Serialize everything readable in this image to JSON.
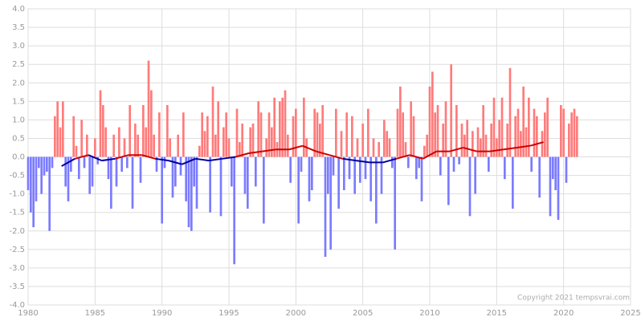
{
  "chart_data": {
    "type": "bar",
    "annotation": "Copyright 2021 tempsvrai.com",
    "xlim": [
      1980,
      2025
    ],
    "xticks": [
      1980,
      1985,
      1990,
      1995,
      2000,
      2005,
      2010,
      2015,
      2020,
      2025
    ],
    "ylim": [
      -4,
      4
    ],
    "yticks": [
      {
        "value": 4,
        "label": "4.0"
      },
      3.5,
      {
        "value": 3,
        "label": "3.0"
      },
      2.5,
      {
        "value": 2,
        "label": "2.0"
      },
      1.5,
      {
        "value": 1,
        "label": "1.0"
      },
      0.5,
      {
        "value": 0,
        "label": "0.0"
      },
      -0.5,
      {
        "value": -1,
        "label": "-1.0"
      },
      -1.5,
      {
        "value": -2,
        "label": "-2.0"
      },
      -2.5,
      {
        "value": -3,
        "label": "-3.0"
      },
      -3.5,
      {
        "value": -4,
        "label": "-4.0"
      }
    ],
    "grid": true,
    "positive_color": "#ff7b7b",
    "negative_color": "#7b7bff",
    "x": [
      1980,
      1980.2,
      1980.4,
      1980.6,
      1980.8,
      1981,
      1981.2,
      1981.4,
      1981.6,
      1981.8,
      1982,
      1982.2,
      1982.4,
      1982.6,
      1982.8,
      1983,
      1983.2,
      1983.4,
      1983.6,
      1983.8,
      1984,
      1984.2,
      1984.4,
      1984.6,
      1984.8,
      1985,
      1985.2,
      1985.4,
      1985.6,
      1985.8,
      1986,
      1986.2,
      1986.4,
      1986.6,
      1986.8,
      1987,
      1987.2,
      1987.4,
      1987.6,
      1987.8,
      1988,
      1988.2,
      1988.4,
      1988.6,
      1988.8,
      1989,
      1989.2,
      1989.4,
      1989.6,
      1989.8,
      1990,
      1990.2,
      1990.4,
      1990.6,
      1990.8,
      1991,
      1991.2,
      1991.4,
      1991.6,
      1991.8,
      1992,
      1992.2,
      1992.4,
      1992.6,
      1992.8,
      1993,
      1993.2,
      1993.4,
      1993.6,
      1993.8,
      1994,
      1994.2,
      1994.4,
      1994.6,
      1994.8,
      1995,
      1995.2,
      1995.4,
      1995.6,
      1995.8,
      1996,
      1996.2,
      1996.4,
      1996.6,
      1996.8,
      1997,
      1997.2,
      1997.4,
      1997.6,
      1997.8,
      1998,
      1998.2,
      1998.4,
      1998.6,
      1998.8,
      1999,
      1999.2,
      1999.4,
      1999.6,
      1999.8,
      2000,
      2000.2,
      2000.4,
      2000.6,
      2000.8,
      2001,
      2001.2,
      2001.4,
      2001.6,
      2001.8,
      2002,
      2002.2,
      2002.4,
      2002.6,
      2002.8,
      2003,
      2003.2,
      2003.4,
      2003.6,
      2003.8,
      2004,
      2004.2,
      2004.4,
      2004.6,
      2004.8,
      2005,
      2005.2,
      2005.4,
      2005.6,
      2005.8,
      2006,
      2006.2,
      2006.4,
      2006.6,
      2006.8,
      2007,
      2007.2,
      2007.4,
      2007.6,
      2007.8,
      2008,
      2008.2,
      2008.4,
      2008.6,
      2008.8,
      2009,
      2009.2,
      2009.4,
      2009.6,
      2009.8,
      2010,
      2010.2,
      2010.4,
      2010.6,
      2010.8,
      2011,
      2011.2,
      2011.4,
      2011.6,
      2011.8,
      2012,
      2012.2,
      2012.4,
      2012.6,
      2012.8,
      2013,
      2013.2,
      2013.4,
      2013.6,
      2013.8,
      2014,
      2014.2,
      2014.4,
      2014.6,
      2014.8,
      2015,
      2015.2,
      2015.4,
      2015.6,
      2015.8,
      2016,
      2016.2,
      2016.4,
      2016.6,
      2016.8,
      2017,
      2017.2,
      2017.4,
      2017.6,
      2017.8,
      2018,
      2018.2,
      2018.4,
      2018.6,
      2018.8,
      2019,
      2019.2,
      2019.4,
      2019.6,
      2019.8,
      2020,
      2020.2,
      2020.4,
      2020.6,
      2020.8,
      2021
    ],
    "values": [
      -0.9,
      -1.5,
      -1.9,
      -1.2,
      -0.3,
      -1.0,
      -0.5,
      -0.4,
      -2.0,
      -0.3,
      1.1,
      1.5,
      0.8,
      1.5,
      -0.8,
      -1.2,
      -0.4,
      1.1,
      0.3,
      -0.6,
      1.0,
      -0.3,
      0.6,
      -1.0,
      -0.8,
      0.5,
      -0.2,
      1.8,
      1.4,
      0.8,
      -0.6,
      -1.4,
      0.6,
      -0.8,
      0.8,
      -0.4,
      0.5,
      -0.3,
      1.4,
      -1.4,
      0.9,
      0.6,
      -0.7,
      1.4,
      0.8,
      2.6,
      1.8,
      0.6,
      -0.4,
      1.2,
      -1.8,
      -0.3,
      1.4,
      0.5,
      -1.1,
      -0.8,
      0.6,
      -0.5,
      1.2,
      -1.2,
      -1.9,
      -2.0,
      -0.8,
      -1.4,
      0.3,
      1.2,
      0.7,
      1.1,
      -1.5,
      1.9,
      0.6,
      1.5,
      -1.6,
      0.8,
      1.2,
      0.5,
      -0.8,
      -2.9,
      1.3,
      0.4,
      0.9,
      -1.0,
      -1.4,
      0.8,
      0.9,
      -0.8,
      1.5,
      1.2,
      -1.8,
      0.5,
      1.2,
      0.8,
      1.6,
      0.4,
      1.5,
      1.6,
      1.8,
      0.6,
      -0.7,
      1.1,
      1.3,
      -1.8,
      -0.4,
      1.6,
      0.5,
      -1.2,
      -0.9,
      1.3,
      1.2,
      0.9,
      1.4,
      -2.7,
      -1.0,
      -2.5,
      -0.5,
      1.3,
      -1.4,
      0.7,
      -0.9,
      1.2,
      -0.6,
      1.1,
      -1.0,
      0.5,
      -0.7,
      0.9,
      -0.6,
      1.3,
      -1.2,
      0.5,
      -1.8,
      0.4,
      -1.0,
      1.0,
      0.7,
      0.5,
      -0.3,
      -2.5,
      1.3,
      1.9,
      1.2,
      0.4,
      -0.3,
      1.5,
      1.1,
      -0.6,
      -0.3,
      -1.2,
      0.3,
      0.6,
      1.9,
      2.3,
      1.2,
      1.4,
      -0.5,
      0.9,
      1.5,
      -1.3,
      2.5,
      -0.4,
      1.4,
      -0.2,
      0.9,
      0.6,
      1.0,
      -1.6,
      0.7,
      -1.0,
      0.8,
      0.5,
      1.4,
      0.6,
      -0.4,
      0.9,
      1.6,
      0.5,
      1.0,
      1.6,
      -0.6,
      0.9,
      2.4,
      -1.4,
      1.1,
      1.3,
      0.7,
      1.9,
      0.8,
      1.6,
      -0.4,
      1.3,
      1.1,
      -1.1,
      0.7,
      1.2,
      1.6,
      -1.6,
      -0.6,
      -0.9,
      -1.7,
      1.4,
      1.3,
      -0.7,
      0.9,
      1.2,
      1.3,
      1.1
    ],
    "moving_average": {
      "positive_color": "#cc0000",
      "negative_color": "#000099",
      "x": [
        1982.5,
        1983.5,
        1984.5,
        1985.5,
        1986.5,
        1987.5,
        1988.5,
        1989.5,
        1990.5,
        1991.5,
        1992.5,
        1993.5,
        1994.5,
        1995.5,
        1996.5,
        1997.5,
        1998.5,
        1999.5,
        2000.5,
        2001.5,
        2002.5,
        2003.5,
        2004.5,
        2005.5,
        2006.5,
        2007.5,
        2008.5,
        2009.5,
        2010.5,
        2011.5,
        2012.5,
        2013.5,
        2014.5,
        2015.5,
        2016.5,
        2017.5,
        2018.5
      ],
      "values": [
        -0.25,
        -0.05,
        0.05,
        -0.1,
        -0.05,
        0.05,
        0.05,
        -0.05,
        -0.1,
        -0.2,
        -0.05,
        -0.1,
        -0.05,
        0.0,
        0.1,
        0.15,
        0.2,
        0.2,
        0.3,
        0.15,
        0.05,
        -0.05,
        -0.1,
        -0.15,
        -0.15,
        -0.05,
        0.05,
        -0.05,
        0.15,
        0.15,
        0.25,
        0.15,
        0.15,
        0.2,
        0.25,
        0.3,
        0.4
      ]
    }
  }
}
